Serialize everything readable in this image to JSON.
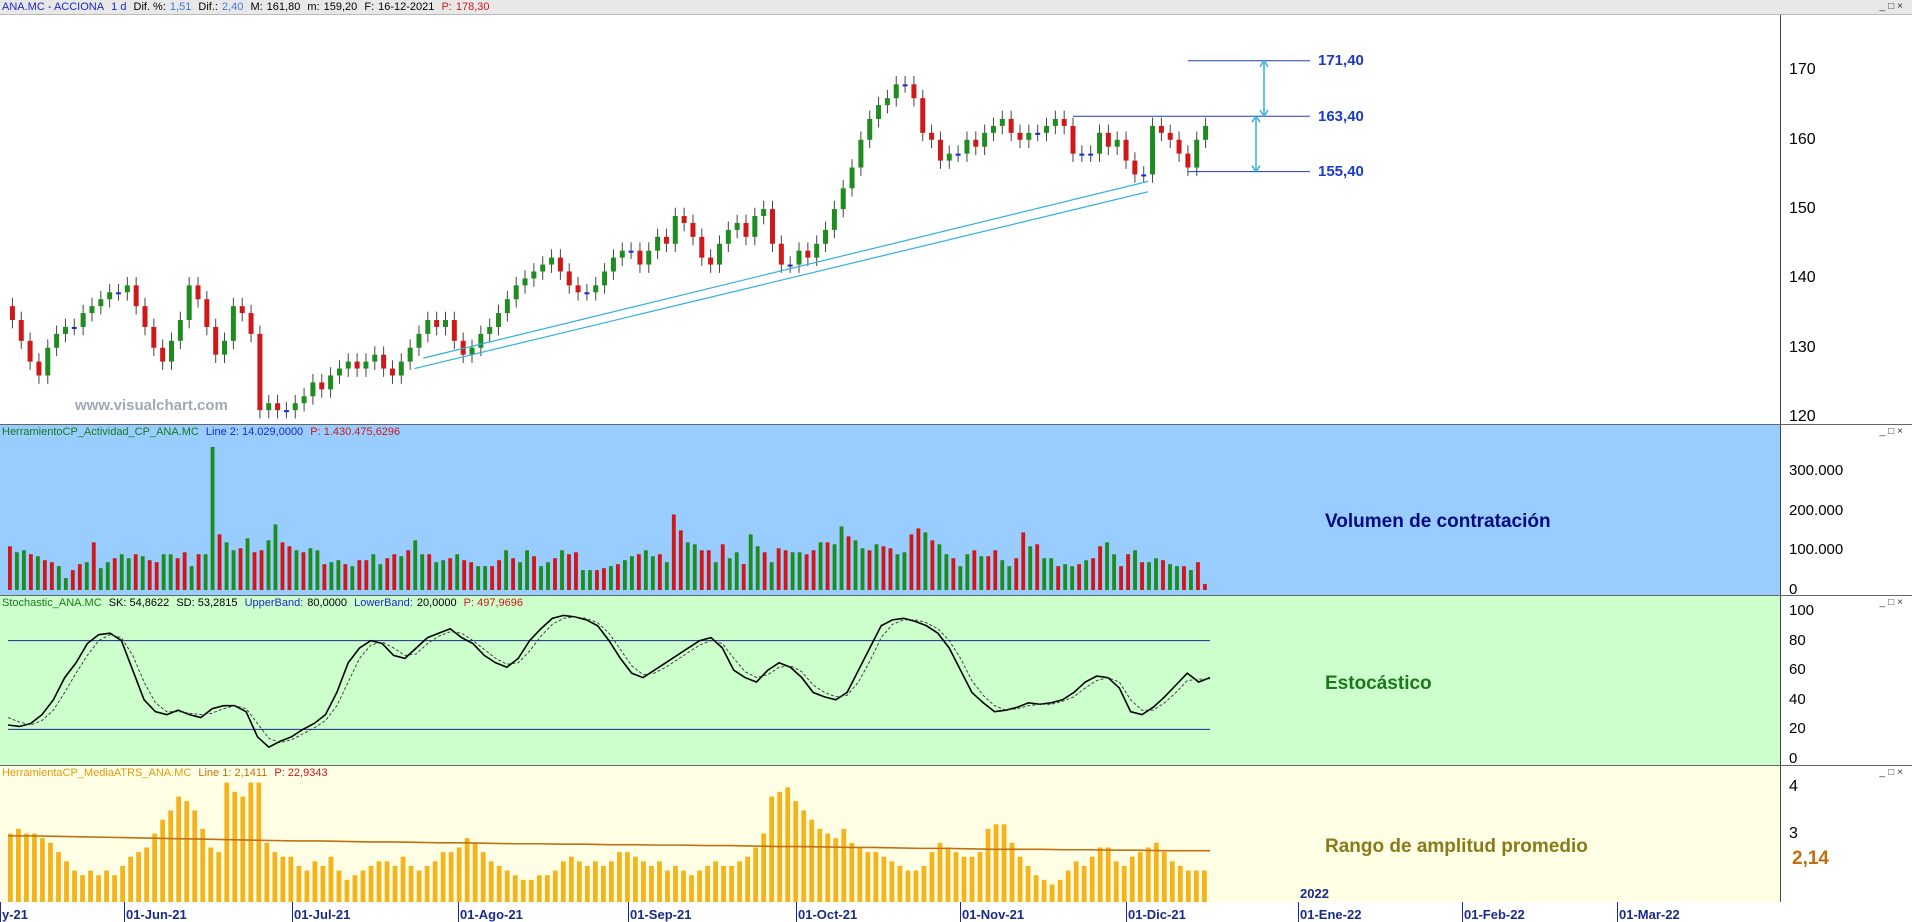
{
  "price_header": {
    "symbol": "ANA.MC - ACCIONA",
    "period": "1 d",
    "dif_pct_label": "Dif. %:",
    "dif_pct": "1,51",
    "dif_label": "Dif.:",
    "dif": "2,40",
    "max_label": "M:",
    "max": "161,80",
    "min_label": "m:",
    "min": "159,20",
    "date_label": "F:",
    "date": "16-12-2021",
    "price_label": "P:",
    "price": "178,30"
  },
  "watermark": "www.visualchart.com",
  "volume_header": {
    "name": "HerramientoCP_Actividad_CP_ANA.MC",
    "line": "Line 2: 14.029,0000",
    "p": "P: 1.430.475,6296"
  },
  "stoch_header": {
    "name": "Stochastic_ANA.MC",
    "sk": "SK: 54,8622",
    "sd": "SD: 53,2815",
    "upper_label": "UpperBand:",
    "upper": "80,0000",
    "lower_label": "LowerBand:",
    "lower": "20,0000",
    "p": "P: 497,9696"
  },
  "atr_header": {
    "name": "HerramientaCP_MediaATRS_ANA.MC",
    "line": "Line 1: 2,1411",
    "p": "P: 22,9343"
  },
  "captions": {
    "volume": "Volumen de contratación",
    "stoch": "Estocástico",
    "atr": "Rango de amplitud promedio"
  },
  "levels": {
    "upper": "171,40",
    "mid": "163,40",
    "lower": "155,40"
  },
  "atr_last_value": "2,14",
  "window_controls": "_□×",
  "colors": {
    "up": "#1e8c1e",
    "down": "#d01818",
    "doji": "#1a2ac8",
    "volume_bg": "#99ccff",
    "stoch_bg": "#ccffcc",
    "atr_bg": "#ffffe6",
    "atr_bar": "#f5b41e",
    "atr_avg": "#c07010",
    "trend": "#30b0e0",
    "level": "#1a3ac8"
  },
  "chart_data": [
    {
      "type": "candlestick",
      "title": "ANA.MC - ACCIONA",
      "y_ticks": [
        120,
        130,
        140,
        150,
        160,
        170
      ],
      "ylim": [
        119,
        178
      ],
      "close_series": [
        134,
        131,
        128,
        126,
        130,
        132,
        133,
        133,
        135,
        136,
        137,
        138,
        138,
        139,
        136,
        133,
        130,
        128,
        131,
        134,
        139,
        137,
        133,
        129,
        131,
        136,
        135,
        132,
        121,
        122,
        121,
        121,
        122,
        123,
        125,
        124,
        126,
        127,
        128,
        127,
        128,
        129,
        127,
        126,
        128,
        130,
        132,
        134,
        133,
        134,
        131,
        129,
        130,
        132,
        133,
        135,
        137,
        139,
        140,
        141,
        142,
        143,
        141,
        139,
        138,
        138,
        139,
        141,
        143,
        144,
        144,
        142,
        144,
        146,
        145,
        149,
        148,
        146,
        143,
        142,
        145,
        147,
        148,
        146,
        149,
        150,
        145,
        142,
        142,
        144,
        143,
        145,
        147,
        150,
        153,
        156,
        160,
        163,
        165,
        166,
        168,
        168,
        166,
        161,
        160,
        157,
        158,
        158,
        160,
        159,
        161,
        162,
        163,
        161,
        160,
        161,
        161,
        162,
        163,
        162,
        158,
        158,
        158,
        161,
        159,
        160,
        157,
        155,
        155,
        162,
        161,
        160,
        158,
        156,
        160,
        162
      ],
      "levels": [
        171.4,
        163.4,
        155.4
      ],
      "trendlines": 2
    },
    {
      "type": "bar",
      "name": "Volumen de contratación",
      "y_ticks": [
        0,
        100000,
        200000,
        300000
      ],
      "y_tick_labels": [
        "0",
        "100.000",
        "200.000",
        "300.000"
      ],
      "ylim": [
        0,
        380000
      ],
      "values": [
        110000,
        95000,
        100000,
        90000,
        85000,
        75000,
        70000,
        60000,
        30000,
        50000,
        65000,
        70000,
        120000,
        55000,
        70000,
        80000,
        90000,
        80000,
        90000,
        85000,
        75000,
        70000,
        90000,
        90000,
        80000,
        95000,
        60000,
        90000,
        90000,
        360000,
        140000,
        120000,
        100000,
        105000,
        130000,
        95000,
        100000,
        125000,
        165000,
        120000,
        110000,
        100000,
        95000,
        105000,
        100000,
        65000,
        70000,
        75000,
        65000,
        60000,
        75000,
        75000,
        90000,
        65000,
        80000,
        90000,
        85000,
        100000,
        125000,
        90000,
        90000,
        70000,
        75000,
        80000,
        90000,
        75000,
        70000,
        60000,
        60000,
        60000,
        75000,
        100000,
        80000,
        70000,
        100000,
        85000,
        60000,
        70000,
        80000,
        100000,
        90000,
        95000,
        50000,
        50000,
        50000,
        55000,
        60000,
        65000,
        75000,
        85000,
        90000,
        100000,
        85000,
        90000,
        70000,
        190000,
        150000,
        120000,
        115000,
        100000,
        100000,
        70000,
        115000,
        80000,
        95000,
        65000,
        140000,
        110000,
        95000,
        70000,
        105000,
        100000,
        95000,
        95000,
        90000,
        100000,
        120000,
        120000,
        115000,
        160000,
        135000,
        125000,
        105000,
        100000,
        115000,
        110000,
        105000,
        90000,
        95000,
        140000,
        155000,
        145000,
        125000,
        115000,
        90000,
        80000,
        60000,
        90000,
        100000,
        85000,
        85000,
        100000,
        75000,
        60000,
        80000,
        145000,
        110000,
        115000,
        80000,
        80000,
        60000,
        65000,
        60000,
        65000,
        75000,
        80000,
        110000,
        120000,
        90000,
        60000,
        90000,
        100000,
        70000,
        70000,
        80000,
        75000,
        65000,
        60000,
        60000,
        50000,
        70000,
        15000
      ]
    },
    {
      "type": "line",
      "name": "Estocástico",
      "y_ticks": [
        0,
        20,
        40,
        60,
        80,
        100
      ],
      "ylim": [
        -2,
        102
      ],
      "bands": [
        80,
        20
      ],
      "series": [
        {
          "name": "SK",
          "values": [
            23,
            22,
            24,
            30,
            40,
            55,
            65,
            78,
            84,
            85,
            80,
            60,
            40,
            32,
            30,
            33,
            30,
            28,
            34,
            36,
            36,
            32,
            15,
            8,
            12,
            15,
            20,
            24,
            30,
            45,
            65,
            75,
            80,
            78,
            70,
            68,
            75,
            82,
            85,
            88,
            82,
            78,
            70,
            65,
            62,
            68,
            80,
            88,
            95,
            97,
            96,
            94,
            90,
            80,
            68,
            58,
            55,
            60,
            65,
            70,
            75,
            80,
            82,
            75,
            60,
            55,
            52,
            60,
            65,
            62,
            55,
            45,
            42,
            40,
            45,
            60,
            75,
            90,
            94,
            95,
            93,
            90,
            85,
            75,
            60,
            45,
            38,
            32,
            33,
            35,
            38,
            37,
            38,
            40,
            45,
            52,
            56,
            55,
            48,
            32,
            30,
            35,
            42,
            50,
            58,
            52,
            55
          ]
        },
        {
          "name": "SD",
          "values": [
            28,
            25,
            23,
            26,
            33,
            45,
            58,
            70,
            80,
            84,
            82,
            70,
            52,
            38,
            32,
            32,
            31,
            30,
            31,
            34,
            36,
            34,
            24,
            14,
            11,
            13,
            17,
            21,
            26,
            36,
            52,
            68,
            77,
            79,
            75,
            70,
            71,
            78,
            83,
            86,
            85,
            80,
            74,
            68,
            64,
            65,
            73,
            83,
            91,
            95,
            96,
            95,
            92,
            85,
            74,
            63,
            57,
            58,
            62,
            67,
            72,
            77,
            80,
            78,
            68,
            59,
            55,
            57,
            62,
            63,
            59,
            50,
            45,
            42,
            43,
            52,
            66,
            82,
            91,
            94,
            94,
            92,
            88,
            80,
            68,
            53,
            43,
            36,
            33,
            34,
            36,
            37,
            37,
            39,
            42,
            48,
            53,
            55,
            52,
            40,
            33,
            33,
            38,
            45,
            53,
            54,
            54
          ]
        }
      ]
    },
    {
      "type": "bar",
      "name": "Rango de amplitud promedio",
      "y_ticks": [
        3,
        4
      ],
      "ylim": [
        1.5,
        4.2
      ],
      "values": [
        3.0,
        3.1,
        3.0,
        3.0,
        2.9,
        2.8,
        2.6,
        2.4,
        2.2,
        2.1,
        2.2,
        2.1,
        2.2,
        2.1,
        2.3,
        2.5,
        2.6,
        2.7,
        3.0,
        3.3,
        3.5,
        3.8,
        3.7,
        3.5,
        3.1,
        2.7,
        2.6,
        4.1,
        3.9,
        3.8,
        4.1,
        4.1,
        2.8,
        2.6,
        2.5,
        2.5,
        2.3,
        2.2,
        2.4,
        2.3,
        2.5,
        2.2,
        2.0,
        2.1,
        2.2,
        2.3,
        2.4,
        2.4,
        2.3,
        2.5,
        2.3,
        2.2,
        2.3,
        2.4,
        2.6,
        2.6,
        2.7,
        2.9,
        2.8,
        2.6,
        2.4,
        2.3,
        2.2,
        2.1,
        2.0,
        2.0,
        2.1,
        2.1,
        2.2,
        2.4,
        2.5,
        2.4,
        2.3,
        2.4,
        2.3,
        2.4,
        2.6,
        2.6,
        2.5,
        2.4,
        2.3,
        2.4,
        2.2,
        2.3,
        2.2,
        2.1,
        2.2,
        2.3,
        2.4,
        2.3,
        2.3,
        2.4,
        2.5,
        2.7,
        3.0,
        3.8,
        3.9,
        4.0,
        3.7,
        3.5,
        3.3,
        3.1,
        3.0,
        2.9,
        3.1,
        2.8,
        2.7,
        2.6,
        2.6,
        2.5,
        2.4,
        2.3,
        2.2,
        2.2,
        2.3,
        2.6,
        2.8,
        2.7,
        2.6,
        2.5,
        2.5,
        2.6,
        3.1,
        3.2,
        3.2,
        2.8,
        2.5,
        2.3,
        2.1,
        2.0,
        1.9,
        2.0,
        2.2,
        2.4,
        2.3,
        2.5,
        2.7,
        2.7,
        2.4,
        2.3,
        2.5,
        2.6,
        2.7,
        2.8,
        2.6,
        2.4,
        2.3,
        2.2,
        2.2,
        2.2
      ],
      "average": [
        2.95,
        2.95,
        2.94,
        2.93,
        2.92,
        2.91,
        2.9,
        2.89,
        2.88,
        2.87,
        2.86,
        2.85,
        2.84,
        2.84,
        2.83,
        2.82,
        2.82,
        2.81,
        2.8,
        2.8,
        2.79,
        2.78,
        2.78,
        2.77,
        2.77,
        2.76,
        2.76,
        2.75,
        2.75,
        2.74,
        2.74,
        2.73,
        2.72,
        2.72,
        2.71,
        2.7,
        2.7,
        2.69,
        2.68,
        2.68,
        2.67,
        2.66,
        2.66,
        2.66,
        2.65,
        2.65,
        2.64,
        2.64,
        2.63,
        2.63,
        2.63
      ]
    }
  ],
  "date_axis": [
    "y-21",
    "01-Jun-21",
    "01-Jul-21",
    "01-Ago-21",
    "01-Sep-21",
    "01-Oct-21",
    "01-Nov-21",
    "01-Dic-21",
    "01-Ene-22",
    "01-Feb-22",
    "01-Mar-22"
  ],
  "year_marker": "2022"
}
